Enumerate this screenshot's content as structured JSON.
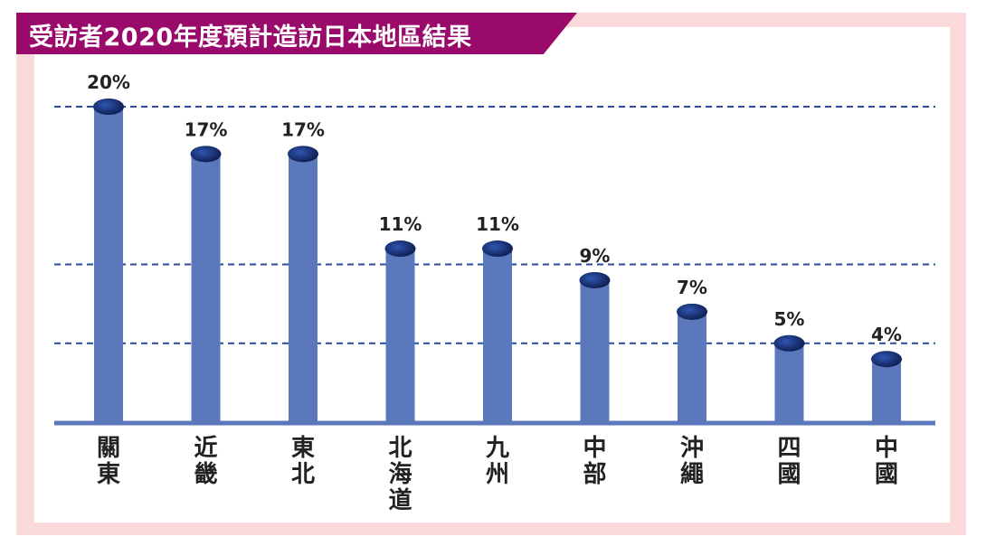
{
  "title": "受訪者2020年度預計造訪日本地區結果",
  "colors": {
    "title_bg": "#9a0a6a",
    "frame": "#f9d9da",
    "bar": "#5b78bd",
    "bar_cap_light": "#2f56b3",
    "bar_cap_dark": "#0b1846",
    "gridline": "#2a4a9a",
    "axis": "#5b78bd"
  },
  "chart_data": {
    "type": "bar",
    "title": "受訪者2020年度預計造訪日本地區結果",
    "categories": [
      "關東",
      "近畿",
      "東北",
      "北海道",
      "九州",
      "中部",
      "沖繩",
      "四國",
      "中國"
    ],
    "values": [
      20,
      17,
      17,
      11,
      11,
      9,
      7,
      5,
      4
    ],
    "value_labels": [
      "20%",
      "17%",
      "17%",
      "11%",
      "11%",
      "9%",
      "7%",
      "5%",
      "4%"
    ],
    "unit": "%",
    "ylim": [
      0,
      20
    ],
    "grid_lines": [
      20,
      10,
      5
    ],
    "grid": true,
    "legend": "none",
    "xlabel": "",
    "ylabel": ""
  }
}
